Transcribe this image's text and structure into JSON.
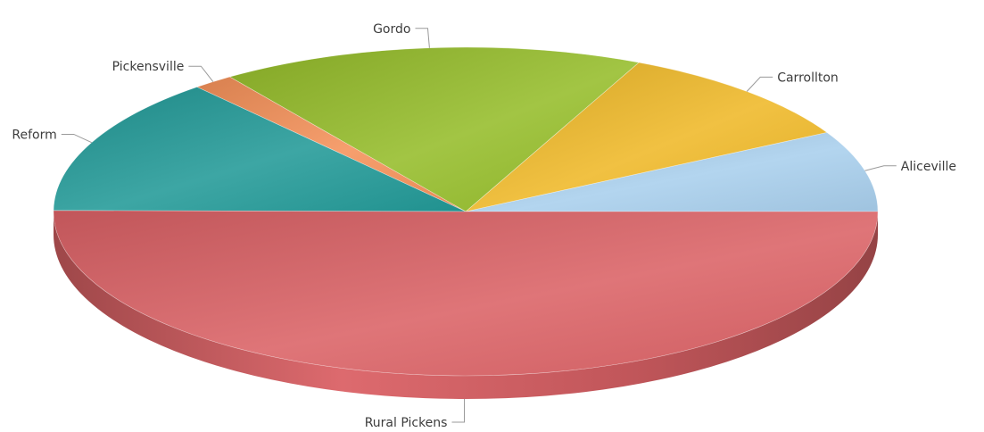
{
  "chart_data": {
    "type": "pie",
    "style": "3d-tilted",
    "legend": "none",
    "start_angle_deg": 0,
    "direction": "counterclockwise",
    "slices": [
      {
        "label": "Aliceville",
        "value": 8.0,
        "color": "#a9cfed"
      },
      {
        "label": "Carrollton",
        "value": 10.1,
        "color": "#efb928"
      },
      {
        "label": "Gordo",
        "value": 16.6,
        "color": "#95bd2a"
      },
      {
        "label": "Pickensville",
        "value": 1.6,
        "color": "#f5925a"
      },
      {
        "label": "Reform",
        "value": 13.6,
        "color": "#229a98"
      },
      {
        "label": "Rural Pickens",
        "value": 50.1,
        "color": "#db6266"
      }
    ]
  }
}
